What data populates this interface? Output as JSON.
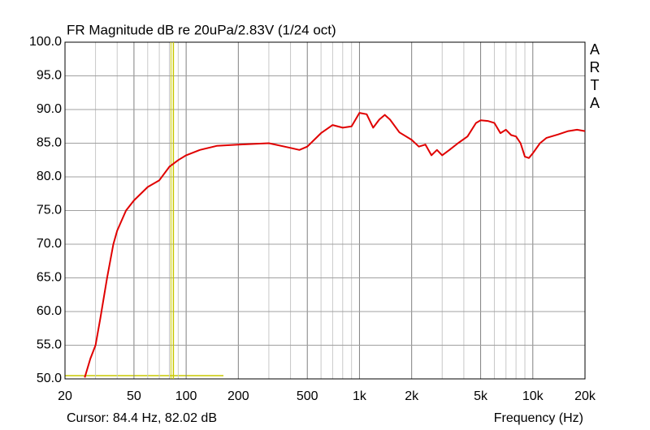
{
  "chart_data": {
    "type": "line",
    "title": "FR Magnitude dB re 20uPa/2.83V (1/24 oct)",
    "side_label": "ARTA",
    "x_label": "Frequency (Hz)",
    "cursor": {
      "label": "Cursor: 84.4 Hz, 82.02 dB",
      "x": 84.4
    },
    "xscale": "log",
    "xlim": [
      20,
      20000
    ],
    "xticks": [
      20,
      50,
      100,
      200,
      500,
      {
        "value": 1000,
        "label": "1k"
      },
      {
        "value": 2000,
        "label": "2k"
      },
      {
        "value": 5000,
        "label": "5k"
      },
      {
        "value": 10000,
        "label": "10k"
      },
      {
        "value": 20000,
        "label": "20k"
      }
    ],
    "xminor": [
      30,
      40,
      60,
      70,
      80,
      90,
      300,
      400,
      600,
      700,
      800,
      900,
      3000,
      4000,
      6000,
      7000,
      8000,
      9000
    ],
    "ylim": [
      50,
      100
    ],
    "yticks": [
      {
        "value": 50,
        "label": "50.0"
      },
      {
        "value": 55,
        "label": "55.0"
      },
      {
        "value": 60,
        "label": "60.0"
      },
      {
        "value": 65,
        "label": "65.0"
      },
      {
        "value": 70,
        "label": "70.0"
      },
      {
        "value": 75,
        "label": "75.0"
      },
      {
        "value": 80,
        "label": "80.0"
      },
      {
        "value": 85,
        "label": "85.0"
      },
      {
        "value": 90,
        "label": "90.0"
      },
      {
        "value": 95,
        "label": "95.0"
      },
      {
        "value": 100,
        "label": "100.0"
      }
    ],
    "grid": true,
    "series": [
      {
        "color": "#e00000",
        "x": [
          26,
          28,
          30,
          32,
          35,
          38,
          40,
          45,
          50,
          60,
          70,
          80,
          90,
          100,
          120,
          150,
          200,
          300,
          400,
          450,
          500,
          600,
          700,
          800,
          900,
          1000,
          1100,
          1200,
          1300,
          1400,
          1500,
          1700,
          2000,
          2200,
          2400,
          2600,
          2800,
          3000,
          3300,
          3700,
          4200,
          4700,
          5000,
          5500,
          6000,
          6500,
          7000,
          7500,
          8000,
          8500,
          9000,
          9500,
          10000,
          11000,
          12000,
          14000,
          16000,
          18000,
          20000
        ],
        "values": [
          50.2,
          53,
          55,
          59,
          65,
          70,
          72,
          75,
          76.5,
          78.5,
          79.5,
          81.5,
          82.5,
          83.2,
          84,
          84.6,
          84.8,
          85,
          84.3,
          84,
          84.5,
          86.5,
          87.7,
          87.3,
          87.5,
          89.5,
          89.3,
          87.3,
          88.5,
          89.2,
          88.5,
          86.6,
          85.5,
          84.5,
          84.8,
          83.2,
          84,
          83.2,
          84,
          85,
          86,
          88,
          88.4,
          88.3,
          88,
          86.5,
          87,
          86.2,
          86,
          85,
          83,
          82.8,
          83.5,
          85,
          85.8,
          86.3,
          86.8,
          87,
          86.8
        ]
      }
    ]
  }
}
